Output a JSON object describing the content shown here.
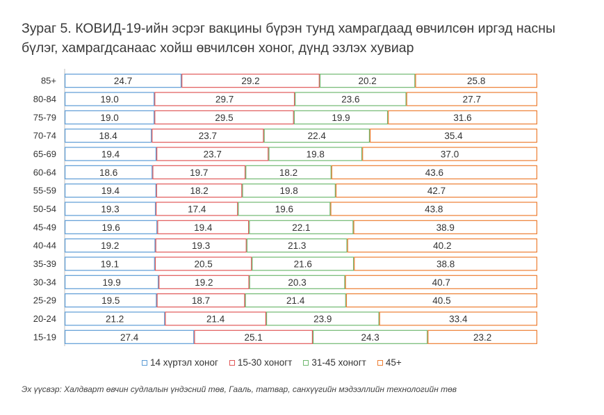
{
  "title": {
    "line1": "Зураг 5. КОВИД-19-ийн эсрэг вакцины бүрэн тунд хамрагдаад өвчилсөн иргэд насны",
    "line2": "бүлэг, хамрагдсанаас хойш өвчилсөн хоног, дүнд эзлэх хувиар"
  },
  "source": "Эх үүсвэр: Халдварт өвчин судлалын үндэсний төв, Гааль, татвар, санхүүгийн мэдээллийн технологийн төв",
  "colors": {
    "s1": "#5b9bd5",
    "s2": "#e05757",
    "s3": "#70b870",
    "s4": "#ed7d31"
  },
  "chart_data": {
    "type": "bar",
    "orientation": "horizontal",
    "stacked": true,
    "percent": true,
    "categories": [
      "85+",
      "80-84",
      "75-79",
      "70-74",
      "65-69",
      "60-64",
      "55-59",
      "50-54",
      "45-49",
      "40-44",
      "35-39",
      "30-34",
      "25-29",
      "20-24",
      "15-19"
    ],
    "series": [
      {
        "name": "14 хүртэл хоног",
        "values": [
          24.7,
          19.0,
          19.0,
          18.4,
          19.4,
          18.6,
          19.4,
          19.3,
          19.6,
          19.2,
          19.1,
          19.9,
          19.5,
          21.2,
          27.4
        ]
      },
      {
        "name": "15-30 хоногт",
        "values": [
          29.2,
          29.7,
          29.5,
          23.7,
          23.7,
          19.7,
          18.2,
          17.4,
          19.4,
          19.3,
          20.5,
          19.2,
          18.7,
          21.4,
          25.1
        ]
      },
      {
        "name": "31-45 хоногт",
        "values": [
          20.2,
          23.6,
          19.9,
          22.4,
          19.8,
          18.2,
          19.8,
          19.6,
          22.1,
          21.3,
          21.6,
          20.3,
          21.4,
          23.9,
          24.3
        ]
      },
      {
        "name": "45+",
        "values": [
          25.8,
          27.7,
          31.6,
          35.4,
          37.0,
          43.6,
          42.7,
          43.8,
          38.9,
          40.2,
          38.8,
          40.7,
          40.5,
          33.4,
          23.2
        ]
      }
    ],
    "legend_position": "bottom",
    "grid": false
  }
}
